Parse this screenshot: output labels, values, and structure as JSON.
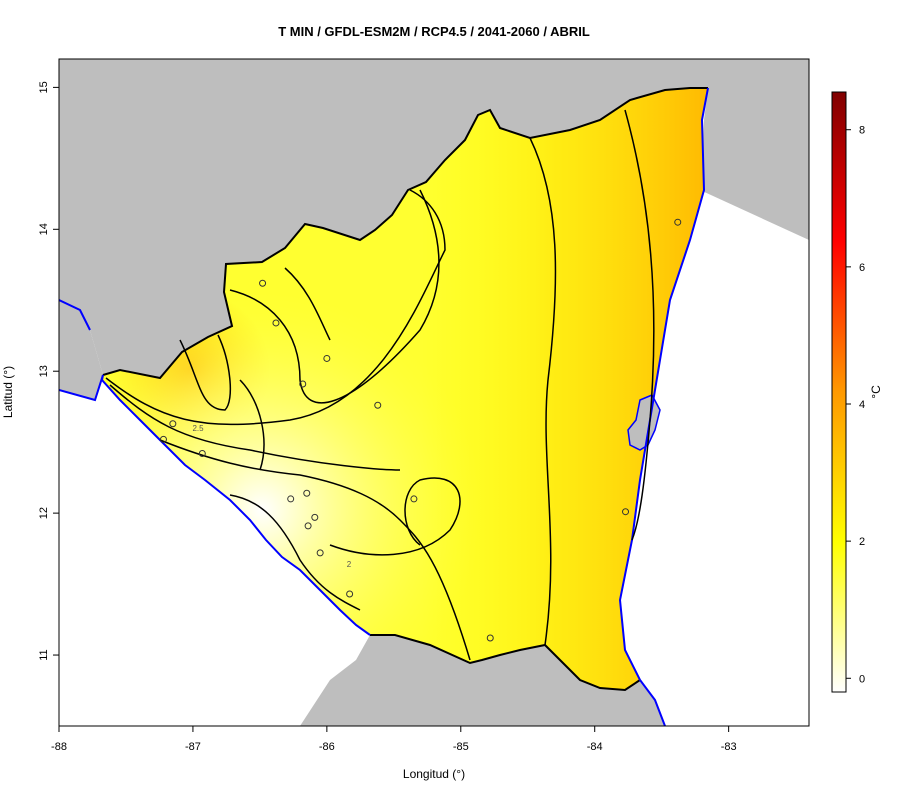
{
  "title": "T MIN / GFDL-ESM2M / RCP4.5 / 2041-2060 / ABRIL",
  "axes": {
    "xlabel": "Longitud (°)",
    "ylabel": "Latitud (°)",
    "xlim": [
      -88,
      -82.4
    ],
    "ylim": [
      10.5,
      15.2
    ],
    "xticks": [
      "-88",
      "-87",
      "-86",
      "-85",
      "-84",
      "-83"
    ],
    "yticks": [
      "11",
      "12",
      "13",
      "14",
      "15"
    ]
  },
  "colorbar": {
    "unit": "°C",
    "range": [
      -0.2,
      8.55
    ],
    "ticks": [
      "0",
      "2",
      "4",
      "6",
      "8"
    ],
    "colors": [
      "#ffffff",
      "#ffff00",
      "#ff6600",
      "#ff0000",
      "#800000"
    ]
  },
  "contours": {
    "labels": [
      "2.5",
      "2"
    ]
  },
  "stations": [
    {
      "lon": -86.48,
      "lat": 13.62
    },
    {
      "lon": -86.38,
      "lat": 13.34
    },
    {
      "lon": -86.0,
      "lat": 13.09
    },
    {
      "lon": -86.18,
      "lat": 12.91
    },
    {
      "lon": -85.62,
      "lat": 12.76
    },
    {
      "lon": -87.15,
      "lat": 12.63
    },
    {
      "lon": -87.22,
      "lat": 12.52
    },
    {
      "lon": -86.93,
      "lat": 12.42
    },
    {
      "lon": -86.27,
      "lat": 12.1
    },
    {
      "lon": -86.15,
      "lat": 12.14
    },
    {
      "lon": -86.14,
      "lat": 11.91
    },
    {
      "lon": -86.09,
      "lat": 11.97
    },
    {
      "lon": -86.05,
      "lat": 11.72
    },
    {
      "lon": -85.35,
      "lat": 12.1
    },
    {
      "lon": -85.83,
      "lat": 11.43
    },
    {
      "lon": -84.78,
      "lat": 11.12
    },
    {
      "lon": -83.38,
      "lat": 14.05
    },
    {
      "lon": -83.77,
      "lat": 12.01
    }
  ],
  "colors": {
    "land": "#bebebe",
    "coast": "#0000ff",
    "border": "#000000"
  }
}
